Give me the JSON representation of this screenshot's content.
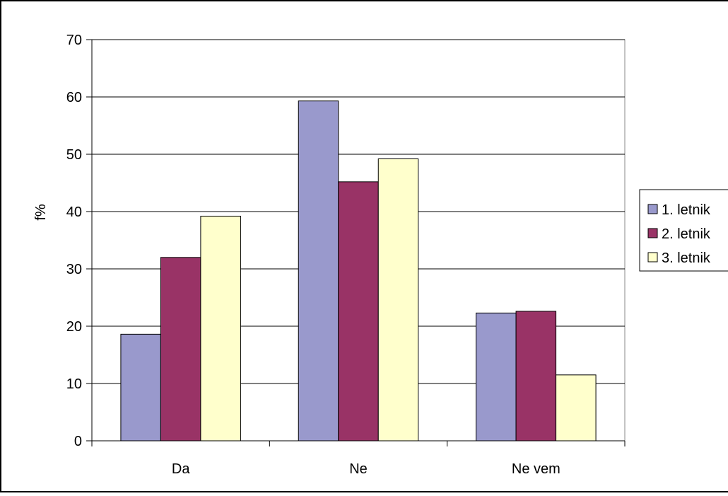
{
  "chart_data": {
    "type": "bar",
    "categories": [
      "Da",
      "Ne",
      "Ne vem"
    ],
    "series": [
      {
        "name": "1. letnik",
        "values": [
          18.6,
          59.3,
          22.3
        ],
        "color": "#9999CC"
      },
      {
        "name": "2. letnik",
        "values": [
          32.0,
          45.2,
          22.6
        ],
        "color": "#993366"
      },
      {
        "name": "3. letnik",
        "values": [
          39.2,
          49.2,
          11.5
        ],
        "color": "#FFFFCC"
      }
    ],
    "title": "",
    "xlabel": "",
    "ylabel": "f%",
    "ylim": [
      0,
      70
    ],
    "yticks": [
      "0",
      "10",
      "20",
      "30",
      "40",
      "50",
      "60",
      "70"
    ],
    "grid": true,
    "legend_position": "right"
  }
}
